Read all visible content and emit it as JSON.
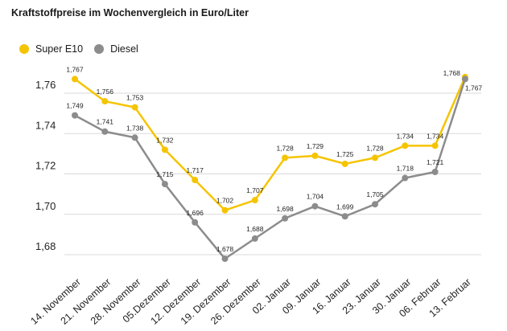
{
  "chart_data": {
    "type": "line",
    "title": "Kraftstoffpreise im Wochenvergleich in Euro/Liter",
    "xlabel": "",
    "ylabel": "",
    "ylim": [
      1.67,
      1.775
    ],
    "yticks": [
      "1,68",
      "1,70",
      "1,72",
      "1,74",
      "1,76"
    ],
    "ytick_values": [
      1.68,
      1.7,
      1.72,
      1.74,
      1.76
    ],
    "grid": "horizontal",
    "legend_position": "top-left",
    "categories": [
      "14. November",
      "21. November",
      "28. November",
      "05.Dezember",
      "12. Dezember",
      "19. Dezember",
      "26. Dezember",
      "02. Januar",
      "09. Januar",
      "16. Januar",
      "23. Januar",
      "30. Januar",
      "06. Februar",
      "13. Februar"
    ],
    "series": [
      {
        "name": "Super E10",
        "color": "#f5c400",
        "values": [
          1.767,
          1.756,
          1.753,
          1.732,
          1.717,
          1.702,
          1.707,
          1.728,
          1.729,
          1.725,
          1.728,
          1.734,
          1.734,
          1.768
        ],
        "labels": [
          "1,767",
          "1,756",
          "1,753",
          "1,732",
          "1,717",
          "1,702",
          "1,707",
          "1,728",
          "1,729",
          "1,725",
          "1,728",
          "1,734",
          "1,734",
          "1,768"
        ]
      },
      {
        "name": "Diesel",
        "color": "#8c8c8c",
        "values": [
          1.749,
          1.741,
          1.738,
          1.715,
          1.696,
          1.678,
          1.688,
          1.698,
          1.704,
          1.699,
          1.705,
          1.718,
          1.721,
          1.767
        ],
        "labels": [
          "1,749",
          "1,741",
          "1,738",
          "1,715",
          "1,696",
          "1,678",
          "1,688",
          "1,698",
          "1,704",
          "1,699",
          "1,705",
          "1,718",
          "1,721",
          "1,767"
        ]
      }
    ]
  }
}
